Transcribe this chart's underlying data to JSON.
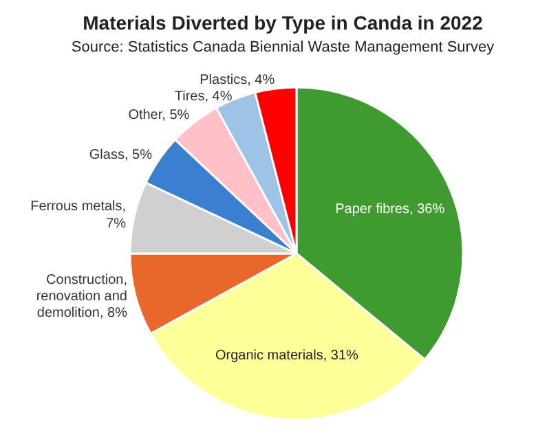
{
  "chart_data": {
    "type": "pie",
    "title": "Materials Diverted by Type in Canda in 2022",
    "subtitle": "Source: Statistics Canada Biennial Waste Management Survey",
    "categories": [
      "Paper fibres",
      "Organic materials",
      "Construction, renovation and demolition",
      "Ferrous metals",
      "Glass",
      "Other",
      "Tires",
      "Plastics"
    ],
    "values": [
      36,
      31,
      8,
      7,
      5,
      5,
      4,
      4
    ],
    "colors": [
      "#3f9a2f",
      "#ffff99",
      "#e8672b",
      "#d0d0d0",
      "#3a7fd0",
      "#ffc0c8",
      "#9dc3e6",
      "#ff0000"
    ],
    "value_labels": [
      ", 36%",
      ", 31%",
      ", 8%",
      ", 7%",
      ", 5%",
      ", 5%",
      ", 4%",
      ", 4%"
    ],
    "legend": false
  }
}
